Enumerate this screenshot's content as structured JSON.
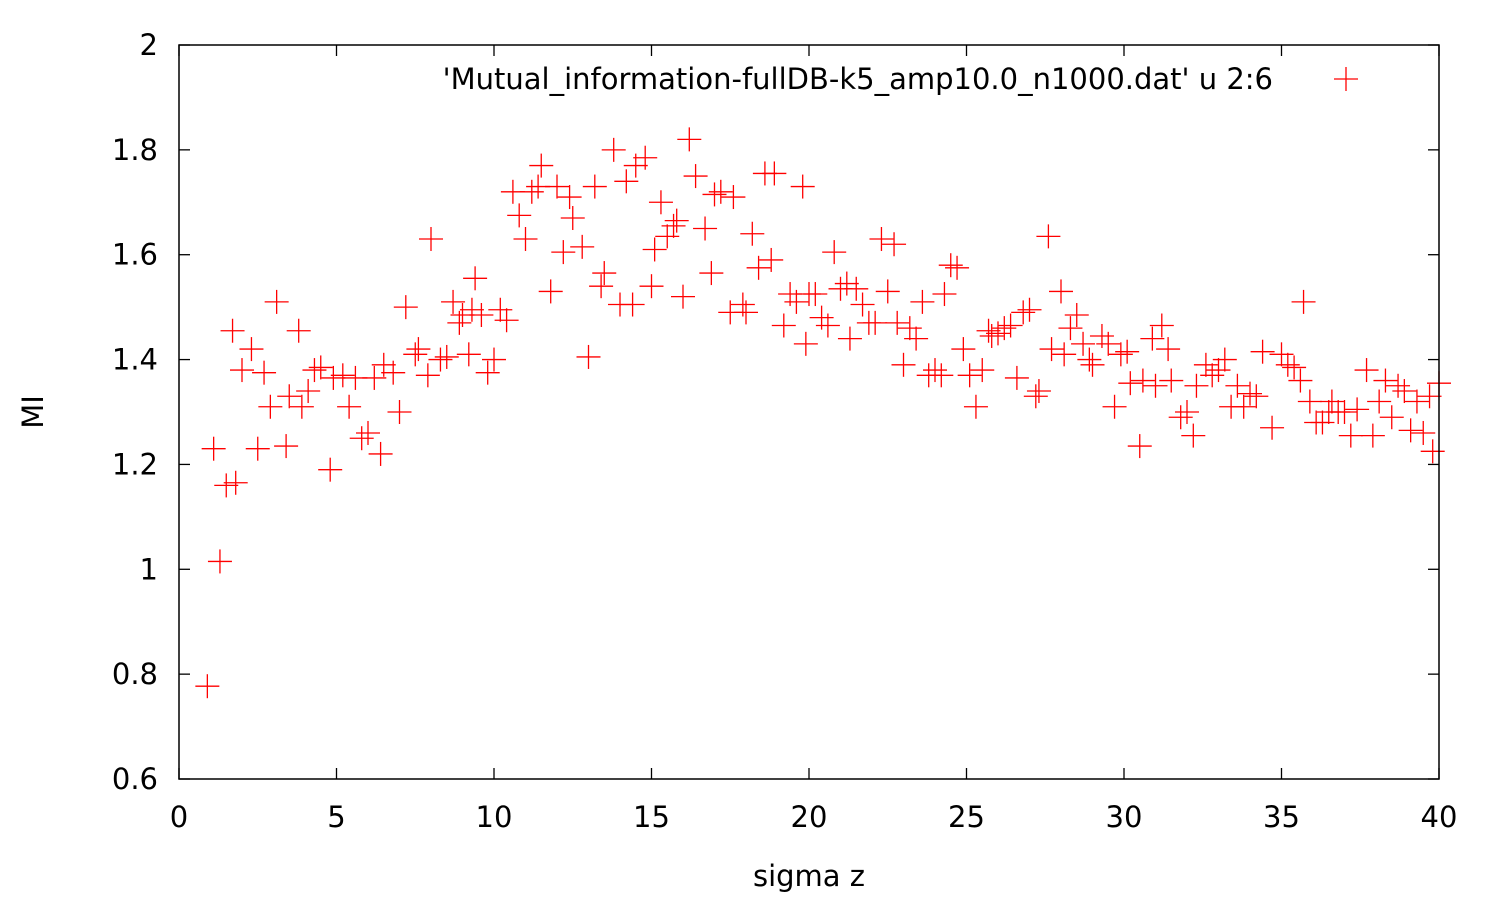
{
  "chart_data": {
    "type": "scatter",
    "title": "",
    "xlabel": "sigma z",
    "ylabel": "MI",
    "xlim": [
      0,
      40
    ],
    "ylim": [
      0.6,
      2.0
    ],
    "xticks": [
      "0",
      "5",
      "10",
      "15",
      "20",
      "25",
      "30",
      "35",
      "40"
    ],
    "yticks": [
      "0.6",
      "0.8",
      "1",
      "1.2",
      "1.4",
      "1.6",
      "1.8",
      "2"
    ],
    "grid": false,
    "legend_position": "top-right",
    "series": [
      {
        "name": "'Mutual_information-fullDB-k5_amp10.0_n1000.dat' u 2:6",
        "color": "#ff0000",
        "marker": "plus",
        "points": [
          [
            0.9,
            0.777
          ],
          [
            1.1,
            1.23
          ],
          [
            1.3,
            1.015
          ],
          [
            1.5,
            1.16
          ],
          [
            1.7,
            1.455
          ],
          [
            1.8,
            1.165
          ],
          [
            2.0,
            1.38
          ],
          [
            2.3,
            1.42
          ],
          [
            2.5,
            1.23
          ],
          [
            2.7,
            1.375
          ],
          [
            2.9,
            1.31
          ],
          [
            3.1,
            1.51
          ],
          [
            3.4,
            1.235
          ],
          [
            3.5,
            1.33
          ],
          [
            3.8,
            1.455
          ],
          [
            3.9,
            1.31
          ],
          [
            4.1,
            1.34
          ],
          [
            4.3,
            1.38
          ],
          [
            4.5,
            1.385
          ],
          [
            4.8,
            1.19
          ],
          [
            4.9,
            1.365
          ],
          [
            5.2,
            1.37
          ],
          [
            5.4,
            1.31
          ],
          [
            5.6,
            1.365
          ],
          [
            5.8,
            1.25
          ],
          [
            6.0,
            1.26
          ],
          [
            6.2,
            1.365
          ],
          [
            6.4,
            1.22
          ],
          [
            6.5,
            1.39
          ],
          [
            6.8,
            1.375
          ],
          [
            7.0,
            1.3
          ],
          [
            7.2,
            1.5
          ],
          [
            7.5,
            1.41
          ],
          [
            7.6,
            1.42
          ],
          [
            7.9,
            1.37
          ],
          [
            8.0,
            1.63
          ],
          [
            8.3,
            1.4
          ],
          [
            8.5,
            1.405
          ],
          [
            8.7,
            1.51
          ],
          [
            8.9,
            1.47
          ],
          [
            9.0,
            1.485
          ],
          [
            9.2,
            1.41
          ],
          [
            9.3,
            1.495
          ],
          [
            9.4,
            1.555
          ],
          [
            9.6,
            1.485
          ],
          [
            9.8,
            1.375
          ],
          [
            10.0,
            1.4
          ],
          [
            10.2,
            1.495
          ],
          [
            10.4,
            1.475
          ],
          [
            10.6,
            1.72
          ],
          [
            10.8,
            1.675
          ],
          [
            11.0,
            1.63
          ],
          [
            11.2,
            1.72
          ],
          [
            11.4,
            1.73
          ],
          [
            11.5,
            1.77
          ],
          [
            11.8,
            1.53
          ],
          [
            12.0,
            1.73
          ],
          [
            12.2,
            1.605
          ],
          [
            12.4,
            1.71
          ],
          [
            12.5,
            1.67
          ],
          [
            12.8,
            1.615
          ],
          [
            13.0,
            1.405
          ],
          [
            13.2,
            1.73
          ],
          [
            13.4,
            1.54
          ],
          [
            13.5,
            1.565
          ],
          [
            13.8,
            1.8
          ],
          [
            14.0,
            1.505
          ],
          [
            14.2,
            1.74
          ],
          [
            14.4,
            1.505
          ],
          [
            14.5,
            1.77
          ],
          [
            14.8,
            1.785
          ],
          [
            15.0,
            1.54
          ],
          [
            15.1,
            1.61
          ],
          [
            15.3,
            1.7
          ],
          [
            15.5,
            1.635
          ],
          [
            15.7,
            1.655
          ],
          [
            15.8,
            1.665
          ],
          [
            16.0,
            1.52
          ],
          [
            16.2,
            1.82
          ],
          [
            16.4,
            1.75
          ],
          [
            16.7,
            1.65
          ],
          [
            16.9,
            1.565
          ],
          [
            17.0,
            1.715
          ],
          [
            17.2,
            1.72
          ],
          [
            17.5,
            1.49
          ],
          [
            17.6,
            1.71
          ],
          [
            17.9,
            1.505
          ],
          [
            18.0,
            1.49
          ],
          [
            18.2,
            1.64
          ],
          [
            18.4,
            1.575
          ],
          [
            18.6,
            1.755
          ],
          [
            18.8,
            1.59
          ],
          [
            18.9,
            1.755
          ],
          [
            19.2,
            1.465
          ],
          [
            19.4,
            1.525
          ],
          [
            19.6,
            1.51
          ],
          [
            19.8,
            1.73
          ],
          [
            19.9,
            1.43
          ],
          [
            20.0,
            1.525
          ],
          [
            20.2,
            1.525
          ],
          [
            20.4,
            1.48
          ],
          [
            20.6,
            1.465
          ],
          [
            20.8,
            1.605
          ],
          [
            21.0,
            1.535
          ],
          [
            21.2,
            1.545
          ],
          [
            21.3,
            1.44
          ],
          [
            21.5,
            1.535
          ],
          [
            21.7,
            1.505
          ],
          [
            21.9,
            1.47
          ],
          [
            22.1,
            1.47
          ],
          [
            22.3,
            1.63
          ],
          [
            22.5,
            1.53
          ],
          [
            22.7,
            1.62
          ],
          [
            22.8,
            1.47
          ],
          [
            23.0,
            1.39
          ],
          [
            23.2,
            1.46
          ],
          [
            23.4,
            1.44
          ],
          [
            23.6,
            1.51
          ],
          [
            23.8,
            1.37
          ],
          [
            24.0,
            1.38
          ],
          [
            24.2,
            1.37
          ],
          [
            24.3,
            1.525
          ],
          [
            24.5,
            1.58
          ],
          [
            24.7,
            1.575
          ],
          [
            24.9,
            1.42
          ],
          [
            25.1,
            1.37
          ],
          [
            25.3,
            1.31
          ],
          [
            25.5,
            1.38
          ],
          [
            25.7,
            1.455
          ],
          [
            25.8,
            1.445
          ],
          [
            26.0,
            1.45
          ],
          [
            26.2,
            1.46
          ],
          [
            26.4,
            1.465
          ],
          [
            26.6,
            1.365
          ],
          [
            26.8,
            1.49
          ],
          [
            27.0,
            1.495
          ],
          [
            27.2,
            1.33
          ],
          [
            27.3,
            1.34
          ],
          [
            27.6,
            1.635
          ],
          [
            27.7,
            1.42
          ],
          [
            28.0,
            1.53
          ],
          [
            28.1,
            1.41
          ],
          [
            28.3,
            1.46
          ],
          [
            28.5,
            1.485
          ],
          [
            28.7,
            1.43
          ],
          [
            28.9,
            1.4
          ],
          [
            29.0,
            1.39
          ],
          [
            29.3,
            1.445
          ],
          [
            29.5,
            1.43
          ],
          [
            29.7,
            1.31
          ],
          [
            29.9,
            1.41
          ],
          [
            30.1,
            1.415
          ],
          [
            30.2,
            1.355
          ],
          [
            30.5,
            1.235
          ],
          [
            30.6,
            1.36
          ],
          [
            30.9,
            1.44
          ],
          [
            31.0,
            1.35
          ],
          [
            31.2,
            1.465
          ],
          [
            31.4,
            1.42
          ],
          [
            31.5,
            1.36
          ],
          [
            31.8,
            1.29
          ],
          [
            32.0,
            1.3
          ],
          [
            32.2,
            1.255
          ],
          [
            32.3,
            1.35
          ],
          [
            32.6,
            1.39
          ],
          [
            32.8,
            1.37
          ],
          [
            33.0,
            1.38
          ],
          [
            33.2,
            1.4
          ],
          [
            33.4,
            1.31
          ],
          [
            33.6,
            1.35
          ],
          [
            33.8,
            1.31
          ],
          [
            34.0,
            1.335
          ],
          [
            34.2,
            1.33
          ],
          [
            34.4,
            1.415
          ],
          [
            34.7,
            1.27
          ],
          [
            35.0,
            1.41
          ],
          [
            35.2,
            1.39
          ],
          [
            35.4,
            1.385
          ],
          [
            35.6,
            1.36
          ],
          [
            35.7,
            1.51
          ],
          [
            35.9,
            1.32
          ],
          [
            36.1,
            1.28
          ],
          [
            36.3,
            1.28
          ],
          [
            36.5,
            1.3
          ],
          [
            36.6,
            1.32
          ],
          [
            36.8,
            1.3
          ],
          [
            37.0,
            1.3
          ],
          [
            37.2,
            1.255
          ],
          [
            37.4,
            1.305
          ],
          [
            37.7,
            1.38
          ],
          [
            37.9,
            1.255
          ],
          [
            38.1,
            1.32
          ],
          [
            38.3,
            1.36
          ],
          [
            38.5,
            1.29
          ],
          [
            38.7,
            1.35
          ],
          [
            38.9,
            1.34
          ],
          [
            39.1,
            1.265
          ],
          [
            39.3,
            1.32
          ],
          [
            39.5,
            1.26
          ],
          [
            39.7,
            1.33
          ],
          [
            39.8,
            1.225
          ],
          [
            40.0,
            1.355
          ]
        ]
      }
    ]
  }
}
